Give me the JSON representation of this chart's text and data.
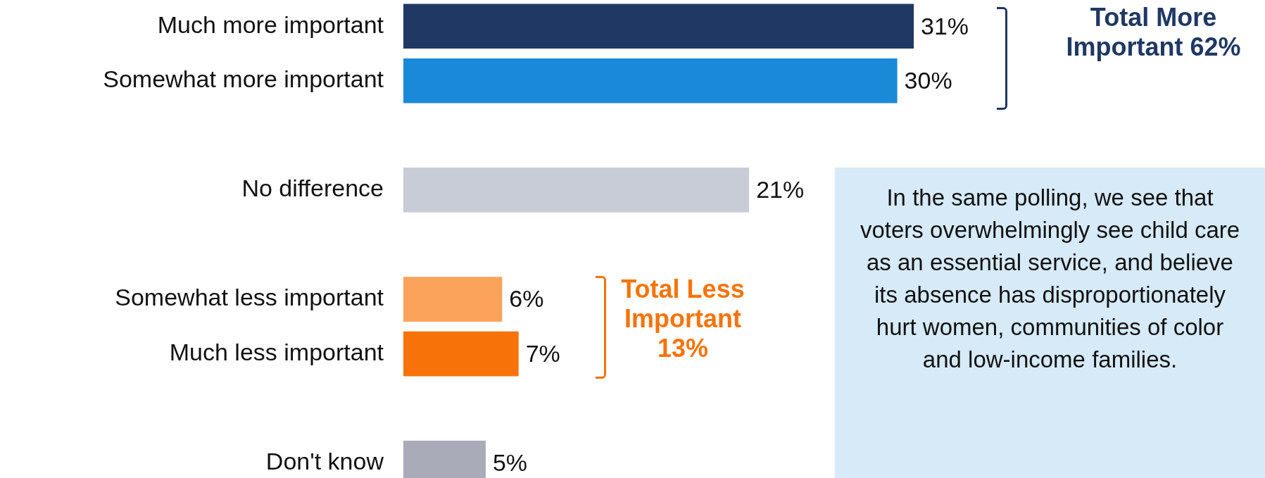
{
  "chart_data": {
    "type": "bar",
    "orientation": "horizontal",
    "categories": [
      "Much more important",
      "Somewhat more important",
      null,
      "No difference",
      null,
      "Somewhat less important",
      "Much less important",
      null,
      "Don't know"
    ],
    "values": [
      31,
      30,
      null,
      21,
      null,
      6,
      7,
      null,
      5
    ],
    "colors": [
      "#1f3864",
      "#1a8ad8",
      "#ffffff",
      "#c8ccd6",
      "#ffffff",
      "#fba35a",
      "#f77309",
      "#ffffff",
      "#a9abb8"
    ],
    "value_labels": [
      "31%",
      "30%",
      null,
      "21%",
      null,
      "6%",
      "7%",
      null,
      "5%"
    ],
    "annotations": [
      "Total More Important 62%",
      "Total Less Important 13%",
      "In the same polling, we see that voters overwhelmingly see child care as an essential service, and believe its absence has disproportionately hurt women, communities of color and low-income families."
    ],
    "grid": false
  }
}
